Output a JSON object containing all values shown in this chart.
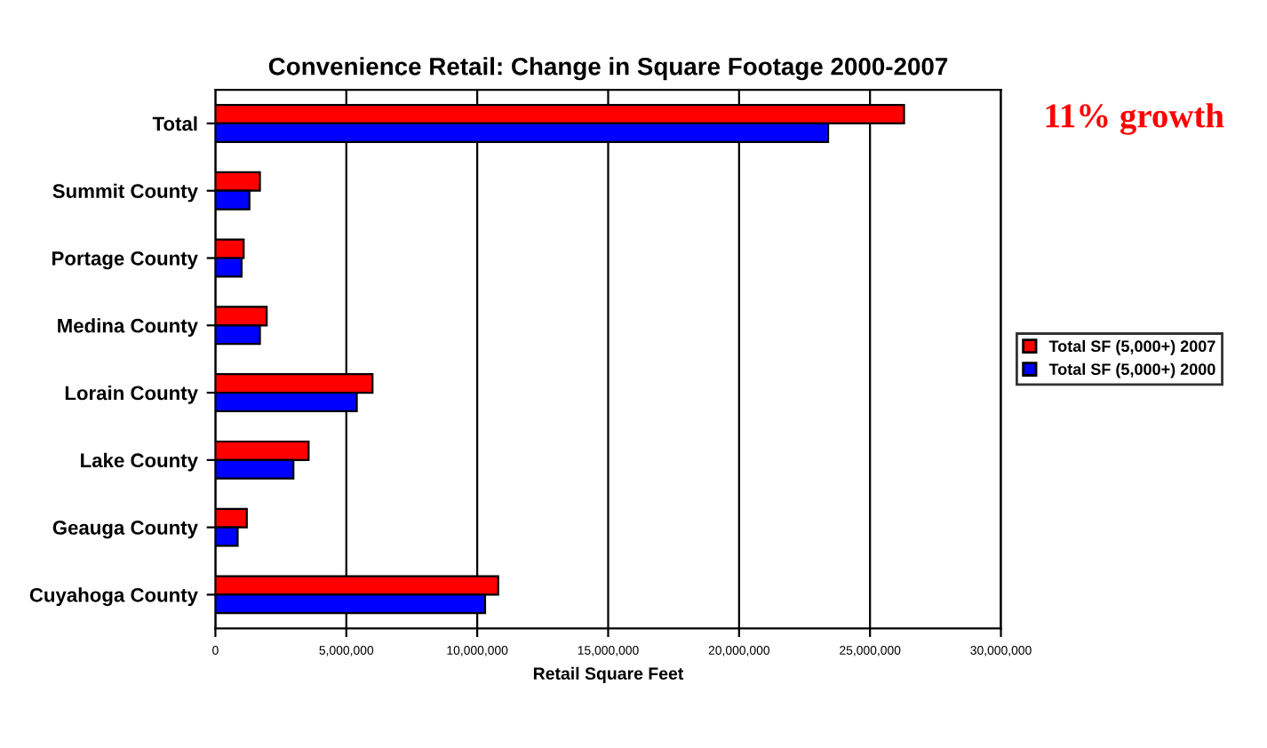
{
  "chart_data": {
    "type": "bar",
    "orientation": "horizontal",
    "title": "Convenience Retail: Change in Square Footage 2000-2007",
    "xlabel": "Retail Square Feet",
    "categories": [
      "Total",
      "Summit County",
      "Portage County",
      "Medina County",
      "Lorain County",
      "Lake County",
      "Geauga County",
      "Cuyahoga County"
    ],
    "series": [
      {
        "name": "Total SF (5,000+) 2007",
        "color": "#ff0000",
        "values": [
          26300000,
          1700000,
          1080000,
          1960000,
          6000000,
          3560000,
          1200000,
          10800000
        ]
      },
      {
        "name": "Total SF (5,000+) 2000",
        "color": "#0000ff",
        "values": [
          23400000,
          1300000,
          1000000,
          1700000,
          5400000,
          2980000,
          850000,
          10300000
        ]
      }
    ],
    "xlim": [
      0,
      30000000
    ],
    "xticks": [
      {
        "value": 0,
        "label": "0"
      },
      {
        "value": 5000000,
        "label": "5,000,000"
      },
      {
        "value": 10000000,
        "label": "10,000,000"
      },
      {
        "value": 15000000,
        "label": "15,000,000"
      },
      {
        "value": 20000000,
        "label": "20,000,000"
      },
      {
        "value": 25000000,
        "label": "25,000,000"
      },
      {
        "value": 30000000,
        "label": "30,000,000"
      }
    ],
    "grid": "x",
    "legend": "right",
    "annotations": [
      "11% growth"
    ]
  }
}
